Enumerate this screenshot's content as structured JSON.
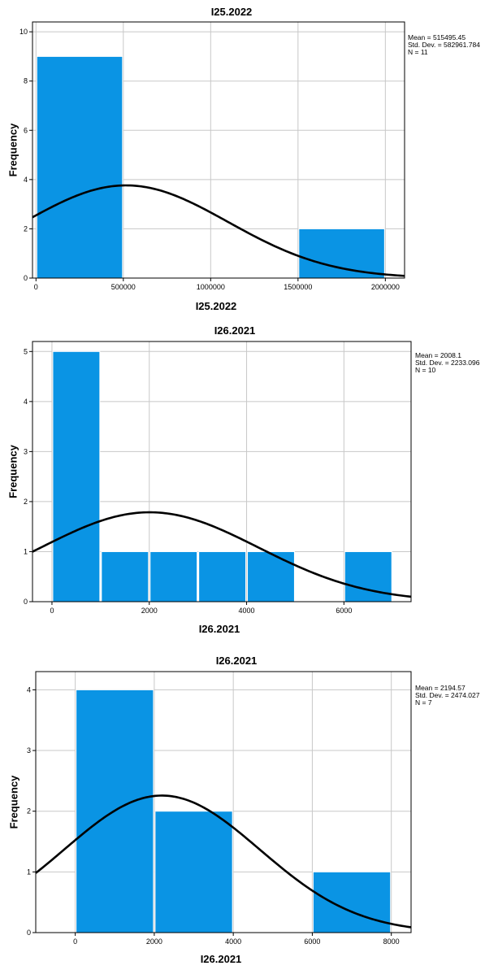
{
  "chart_data": [
    {
      "type": "bar",
      "title": "I25.2022",
      "xlabel": "I25.2022",
      "ylabel": "Frequency",
      "bins": [
        {
          "start": 0,
          "end": 500000,
          "count": 9
        },
        {
          "start": 500000,
          "end": 1000000,
          "count": 0
        },
        {
          "start": 1000000,
          "end": 1500000,
          "count": 0
        },
        {
          "start": 1500000,
          "end": 2000000,
          "count": 2
        }
      ],
      "xlim": [
        -20000,
        2110000
      ],
      "ylim": [
        0,
        10.4
      ],
      "x_ticks": [
        0,
        500000,
        1000000,
        1500000,
        2000000
      ],
      "x_tick_labels": [
        "0",
        "500000",
        "1000000",
        "1500000",
        "2000000"
      ],
      "y_ticks": [
        0,
        2,
        4,
        6,
        8,
        10
      ],
      "grid": true,
      "bar_color": "#0a94e4",
      "normal_curve": {
        "mean": 515495.45,
        "sd": 582961.784,
        "n": 11,
        "bin_width": 500000
      },
      "stats": [
        "Mean = 515495.45",
        "Std. Dev. = 582961.784",
        "N = 11"
      ],
      "legend_position": "top-right"
    },
    {
      "type": "bar",
      "title": "I26.2021",
      "xlabel": "I26.2021",
      "ylabel": "Frequency",
      "bins": [
        {
          "start": 0,
          "end": 1000,
          "count": 5
        },
        {
          "start": 1000,
          "end": 2000,
          "count": 1
        },
        {
          "start": 2000,
          "end": 3000,
          "count": 1
        },
        {
          "start": 3000,
          "end": 4000,
          "count": 1
        },
        {
          "start": 4000,
          "end": 5000,
          "count": 1
        },
        {
          "start": 5000,
          "end": 6000,
          "count": 0
        },
        {
          "start": 6000,
          "end": 7000,
          "count": 1
        }
      ],
      "xlim": [
        -400,
        7380
      ],
      "ylim": [
        0,
        5.2
      ],
      "x_ticks": [
        0,
        2000,
        4000,
        6000
      ],
      "x_tick_labels": [
        "0",
        "2000",
        "4000",
        "6000"
      ],
      "y_ticks": [
        0,
        1,
        2,
        3,
        4,
        5
      ],
      "grid": true,
      "bar_color": "#0a94e4",
      "normal_curve": {
        "mean": 2008.1,
        "sd": 2233.096,
        "n": 10,
        "bin_width": 1000
      },
      "stats": [
        "Mean = 2008.1",
        "Std. Dev. = 2233.096",
        "N = 10"
      ],
      "legend_position": "top-right"
    },
    {
      "type": "bar",
      "title": "I26.2021",
      "xlabel": "I26.2021",
      "ylabel": "Frequency",
      "bins": [
        {
          "start": 0,
          "end": 2000,
          "count": 4
        },
        {
          "start": 2000,
          "end": 4000,
          "count": 2
        },
        {
          "start": 4000,
          "end": 6000,
          "count": 0
        },
        {
          "start": 6000,
          "end": 8000,
          "count": 1
        }
      ],
      "xlim": [
        -1000,
        8500
      ],
      "ylim": [
        0,
        4.3
      ],
      "x_ticks": [
        0,
        2000,
        4000,
        6000,
        8000
      ],
      "x_tick_labels": [
        "0",
        "2000",
        "4000",
        "6000",
        "8000"
      ],
      "y_ticks": [
        0,
        1,
        2,
        3,
        4
      ],
      "grid": true,
      "bar_color": "#0a94e4",
      "normal_curve": {
        "mean": 2194.57,
        "sd": 2474.027,
        "n": 7,
        "bin_width": 2000
      },
      "stats": [
        "Mean = 2194.57",
        "Std. Dev. = 2474.027",
        "N = 7"
      ],
      "legend_position": "top-right"
    }
  ]
}
